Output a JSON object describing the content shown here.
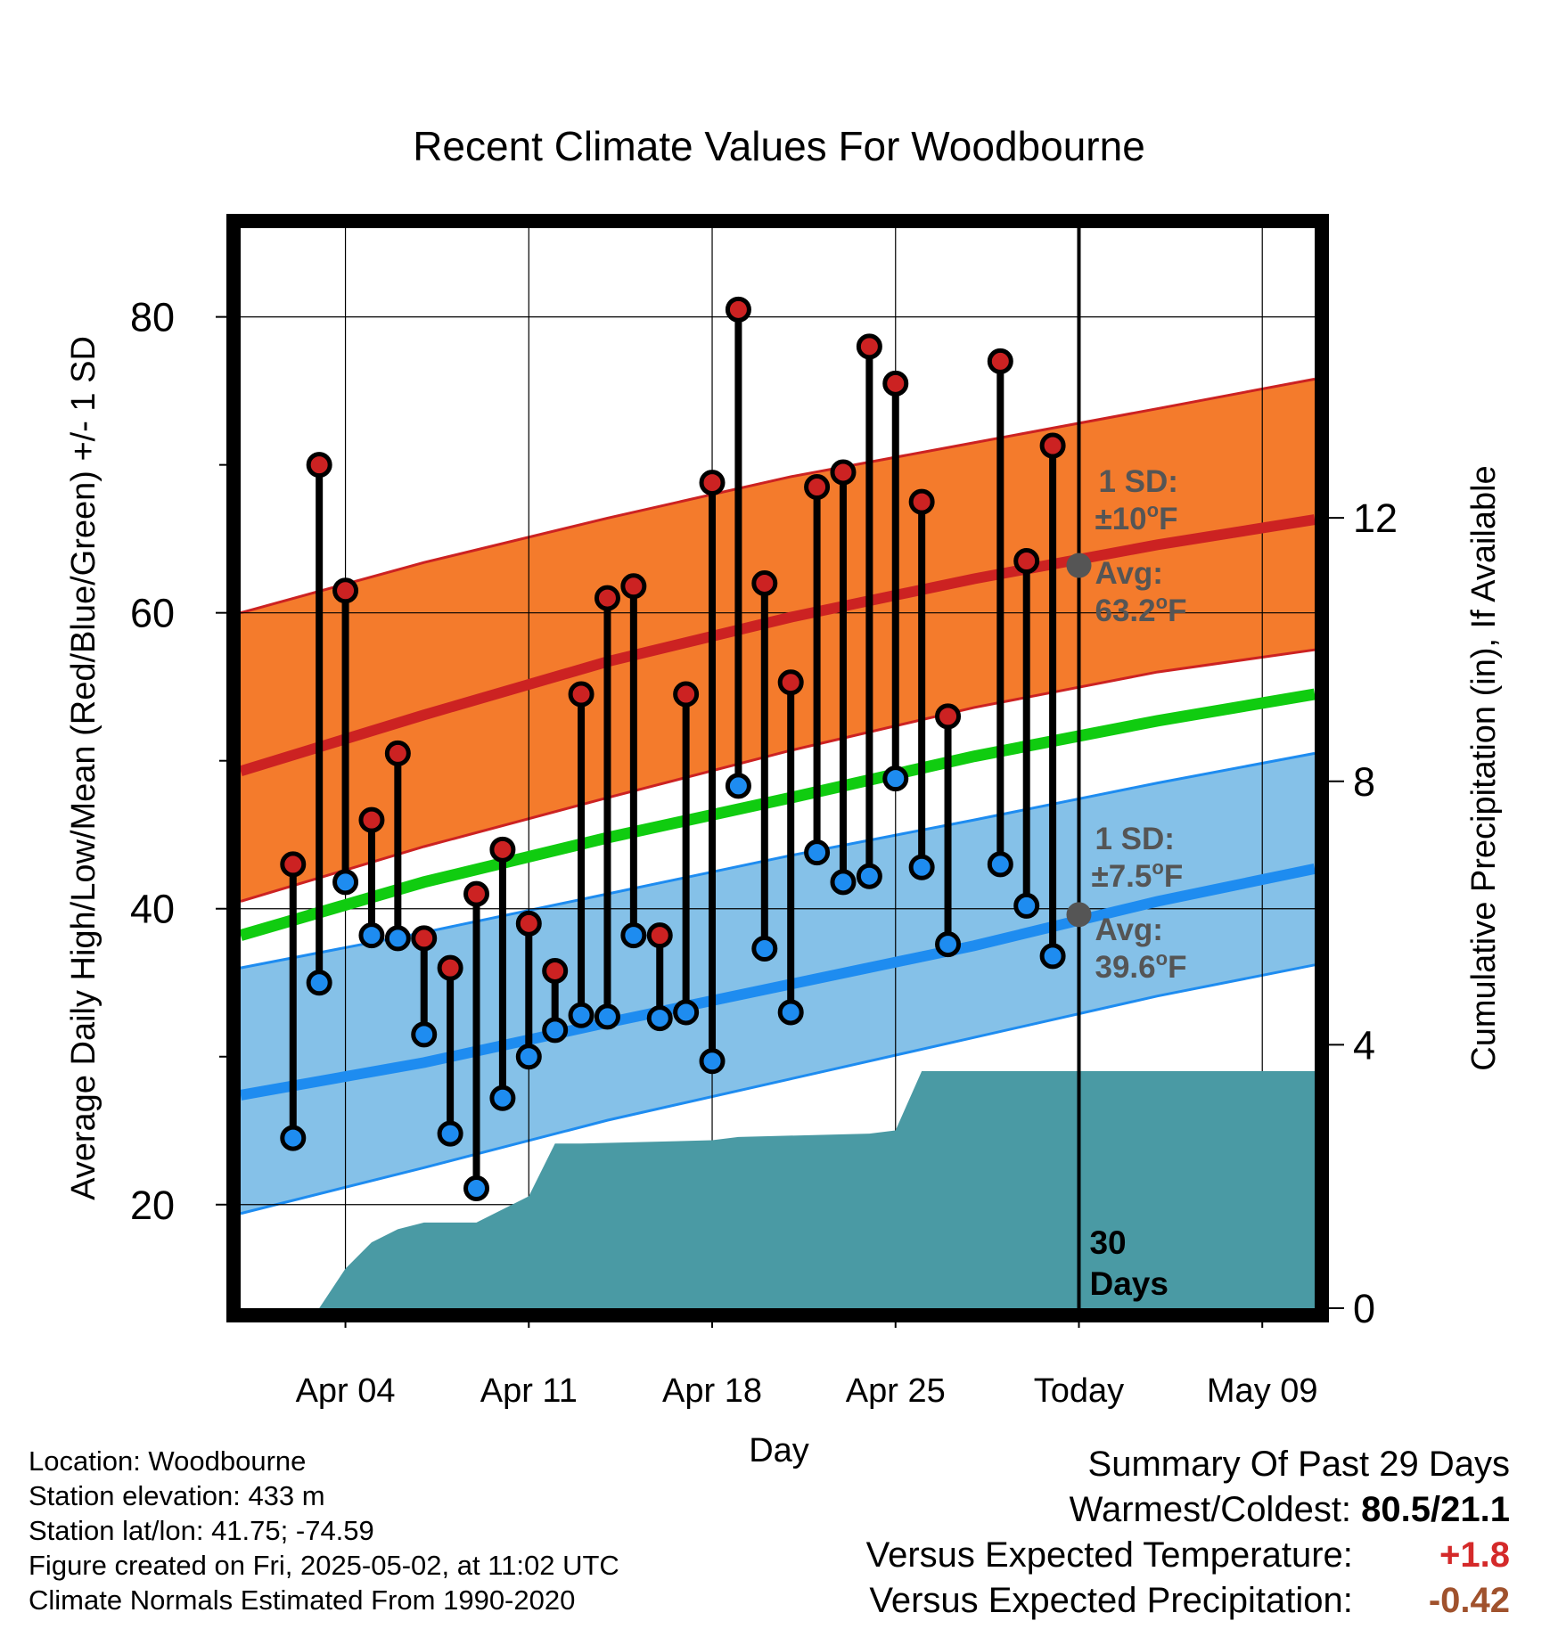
{
  "colors": {
    "high_band": "#f47b2c",
    "high_line": "#cc2222",
    "low_band": "#85c1e8",
    "low_line": "#1e8cf0",
    "mean_line": "#10cc10",
    "precip_fill": "#4a9aa4",
    "avg_marker": "#555555",
    "high_point": "#cc2222",
    "low_point": "#1e8cf0",
    "temp_departure": "#d42a2a",
    "precip_departure": "#a0522d"
  },
  "chart_data": {
    "type": "line",
    "title": "Recent Climate Values For Woodbourne",
    "xlabel": "Day",
    "ylabel": "Average Daily High/Low/Mean (Red/Blue/Green) +/- 1 SD",
    "y2label": "Cumulative Precipitation (in), If Available",
    "x_tick_labels": [
      "Apr 04",
      "Apr 11",
      "Apr 18",
      "Apr 25",
      "Today",
      "May 09"
    ],
    "x_tick_dates": [
      "2025-04-04",
      "2025-04-11",
      "2025-04-18",
      "2025-04-25",
      "2025-05-02",
      "2025-05-09"
    ],
    "xlim": [
      "2025-03-31",
      "2025-05-11"
    ],
    "ylim": [
      13,
      86
    ],
    "y_ticks": [
      20,
      40,
      60,
      80
    ],
    "y_minor_ticks": [
      30,
      50,
      70
    ],
    "y2lim": [
      0,
      16.4
    ],
    "y2_ticks": [
      0,
      4,
      8,
      12
    ],
    "grid": true,
    "today": "2025-05-02",
    "today_label": [
      "30",
      "Days"
    ],
    "daily_highs": [
      {
        "date": "2025-04-02",
        "value": 43
      },
      {
        "date": "2025-04-03",
        "value": 70
      },
      {
        "date": "2025-04-04",
        "value": 61.5
      },
      {
        "date": "2025-04-05",
        "value": 46
      },
      {
        "date": "2025-04-06",
        "value": 50.5
      },
      {
        "date": "2025-04-07",
        "value": 38
      },
      {
        "date": "2025-04-08",
        "value": 36
      },
      {
        "date": "2025-04-09",
        "value": 41
      },
      {
        "date": "2025-04-10",
        "value": 44
      },
      {
        "date": "2025-04-11",
        "value": 39
      },
      {
        "date": "2025-04-12",
        "value": 35.8
      },
      {
        "date": "2025-04-13",
        "value": 54.5
      },
      {
        "date": "2025-04-14",
        "value": 61
      },
      {
        "date": "2025-04-15",
        "value": 61.8
      },
      {
        "date": "2025-04-16",
        "value": 38.2
      },
      {
        "date": "2025-04-17",
        "value": 54.5
      },
      {
        "date": "2025-04-18",
        "value": 68.8
      },
      {
        "date": "2025-04-19",
        "value": 80.5
      },
      {
        "date": "2025-04-20",
        "value": 62
      },
      {
        "date": "2025-04-21",
        "value": 55.3
      },
      {
        "date": "2025-04-22",
        "value": 68.5
      },
      {
        "date": "2025-04-23",
        "value": 69.5
      },
      {
        "date": "2025-04-24",
        "value": 78
      },
      {
        "date": "2025-04-25",
        "value": 75.5
      },
      {
        "date": "2025-04-26",
        "value": 67.5
      },
      {
        "date": "2025-04-27",
        "value": 53
      },
      {
        "date": "2025-04-29",
        "value": 77
      },
      {
        "date": "2025-04-30",
        "value": 63.5
      },
      {
        "date": "2025-05-01",
        "value": 71.3
      }
    ],
    "daily_lows": [
      {
        "date": "2025-04-02",
        "value": 24.5
      },
      {
        "date": "2025-04-03",
        "value": 35
      },
      {
        "date": "2025-04-04",
        "value": 41.8
      },
      {
        "date": "2025-04-05",
        "value": 38.2
      },
      {
        "date": "2025-04-06",
        "value": 38
      },
      {
        "date": "2025-04-07",
        "value": 31.5
      },
      {
        "date": "2025-04-08",
        "value": 24.8
      },
      {
        "date": "2025-04-09",
        "value": 21.1
      },
      {
        "date": "2025-04-10",
        "value": 27.2
      },
      {
        "date": "2025-04-11",
        "value": 30
      },
      {
        "date": "2025-04-12",
        "value": 31.8
      },
      {
        "date": "2025-04-13",
        "value": 32.8
      },
      {
        "date": "2025-04-14",
        "value": 32.7
      },
      {
        "date": "2025-04-15",
        "value": 38.2
      },
      {
        "date": "2025-04-16",
        "value": 32.6
      },
      {
        "date": "2025-04-17",
        "value": 33
      },
      {
        "date": "2025-04-18",
        "value": 29.7
      },
      {
        "date": "2025-04-19",
        "value": 48.3
      },
      {
        "date": "2025-04-20",
        "value": 37.3
      },
      {
        "date": "2025-04-21",
        "value": 33
      },
      {
        "date": "2025-04-22",
        "value": 43.8
      },
      {
        "date": "2025-04-23",
        "value": 41.8
      },
      {
        "date": "2025-04-24",
        "value": 42.2
      },
      {
        "date": "2025-04-25",
        "value": 48.8
      },
      {
        "date": "2025-04-26",
        "value": 42.8
      },
      {
        "date": "2025-04-27",
        "value": 37.6
      },
      {
        "date": "2025-04-29",
        "value": 43
      },
      {
        "date": "2025-04-30",
        "value": 40.2
      },
      {
        "date": "2025-05-01",
        "value": 36.8
      }
    ],
    "normal_high": {
      "dates": [
        "2025-03-31",
        "2025-04-07",
        "2025-04-14",
        "2025-04-21",
        "2025-04-28",
        "2025-05-05",
        "2025-05-11"
      ],
      "mean": [
        49.3,
        53.1,
        56.7,
        59.7,
        62.3,
        64.6,
        66.3
      ],
      "upper": [
        60,
        63.4,
        66.4,
        69.2,
        71.5,
        73.8,
        75.8
      ],
      "lower": [
        40.5,
        44.2,
        47.5,
        50.7,
        53.6,
        56,
        57.5
      ]
    },
    "normal_mean": {
      "dates": [
        "2025-03-31",
        "2025-04-07",
        "2025-04-14",
        "2025-04-21",
        "2025-04-28",
        "2025-05-05",
        "2025-05-11"
      ],
      "values": [
        38.2,
        41.8,
        44.8,
        47.5,
        50.3,
        52.7,
        54.5
      ]
    },
    "normal_low": {
      "dates": [
        "2025-03-31",
        "2025-04-07",
        "2025-04-14",
        "2025-04-21",
        "2025-04-28",
        "2025-05-05",
        "2025-05-11"
      ],
      "mean": [
        27.4,
        29.6,
        32.3,
        34.9,
        37.5,
        40.5,
        42.7
      ],
      "upper": [
        36,
        38.4,
        41,
        43.6,
        46,
        48.5,
        50.5
      ],
      "lower": [
        19.4,
        22.5,
        25.7,
        28.5,
        31.3,
        34.1,
        36.2
      ]
    },
    "cumulative_precip": [
      {
        "date": "2025-04-03",
        "value": 0
      },
      {
        "date": "2025-04-04",
        "value": 0.6
      },
      {
        "date": "2025-04-05",
        "value": 1.0
      },
      {
        "date": "2025-04-06",
        "value": 1.2
      },
      {
        "date": "2025-04-07",
        "value": 1.3
      },
      {
        "date": "2025-04-08",
        "value": 1.3
      },
      {
        "date": "2025-04-09",
        "value": 1.3
      },
      {
        "date": "2025-04-10",
        "value": 1.5
      },
      {
        "date": "2025-04-11",
        "value": 1.7
      },
      {
        "date": "2025-04-12",
        "value": 2.5
      },
      {
        "date": "2025-04-13",
        "value": 2.5
      },
      {
        "date": "2025-04-18",
        "value": 2.55
      },
      {
        "date": "2025-04-19",
        "value": 2.6
      },
      {
        "date": "2025-04-24",
        "value": 2.65
      },
      {
        "date": "2025-04-25",
        "value": 2.7
      },
      {
        "date": "2025-04-26",
        "value": 3.6
      },
      {
        "date": "2025-05-11",
        "value": 3.6
      }
    ],
    "annotations": {
      "high_sd_label": "1 SD:",
      "high_sd_value": "±10",
      "high_avg_label": "Avg:",
      "high_avg_value": "63.2",
      "high_avg_temp": 63.2,
      "low_sd_label": "1 SD:",
      "low_sd_value": "±7.5",
      "low_avg_label": "Avg:",
      "low_avg_value": "39.6",
      "low_avg_temp": 39.6,
      "degree_mark": "o",
      "unit": "F"
    }
  },
  "info": {
    "location": "Location: Woodbourne",
    "elevation": "Station elevation: 433 m",
    "latlon": "Station lat/lon: 41.75; -74.59",
    "created": "Figure created on Fri, 2025-05-02, at 11:02 UTC",
    "normals": "Climate Normals Estimated From 1990-2020"
  },
  "summary": {
    "title": "Summary Of Past 29 Days",
    "warmest_coldest_label": "Warmest/Coldest:",
    "warmest_coldest_value": "80.5/21.1",
    "temp_label": "Versus Expected Temperature:",
    "temp_value": "+1.8",
    "precip_label": "Versus Expected Precipitation:",
    "precip_value": "-0.42"
  }
}
